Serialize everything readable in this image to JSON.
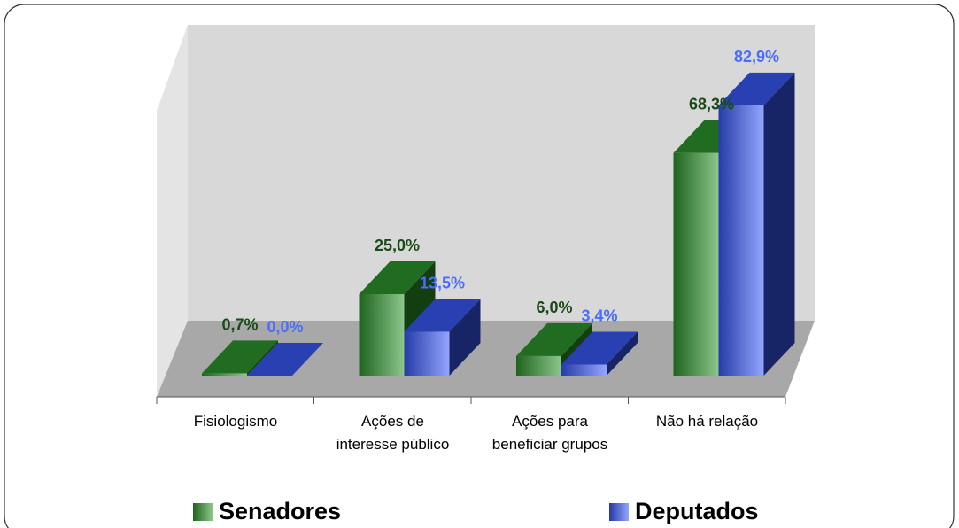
{
  "chart_data": {
    "type": "bar3d",
    "categories": [
      "Fisiologismo",
      "Ações de\ninteresse público",
      "Ações para\nbeneficiar grupos",
      "Não há relação"
    ],
    "series": [
      {
        "name": "Senadores",
        "color": "#2e9a2e",
        "values": [
          0.7,
          25.0,
          6.0,
          68.3
        ],
        "value_labels": [
          "0,7%",
          "25,0%",
          "6,0%",
          "68,3%"
        ],
        "label_color": "#1a4a1a"
      },
      {
        "name": "Deputados",
        "color": "#3a5cff",
        "values": [
          0.0,
          13.5,
          3.4,
          82.9
        ],
        "value_labels": [
          "0,0%",
          "13,5%",
          "3,4%",
          "82,9%"
        ],
        "label_color": "#4a6cff"
      }
    ],
    "ylim": [
      0,
      100
    ],
    "legend": "bottom"
  }
}
